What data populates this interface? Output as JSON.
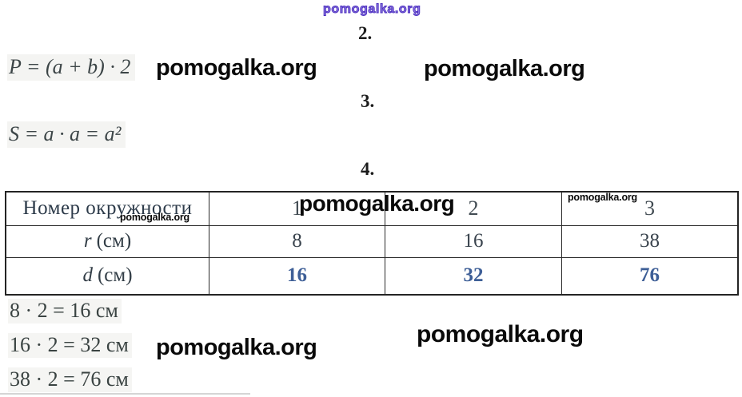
{
  "watermarks": {
    "site": "pomogalka.org"
  },
  "headings": {
    "item2": "2.",
    "item3": "3.",
    "item4": "4."
  },
  "formulas": {
    "perimeter": "P = (a + b) · 2",
    "area": "S = a · a = a²"
  },
  "table": {
    "header": {
      "label": "Номер окружности",
      "columns": [
        "1",
        "2",
        "3"
      ]
    },
    "rows": [
      {
        "var": "r",
        "unit": "(см)",
        "values": [
          "8",
          "16",
          "38"
        ]
      },
      {
        "var": "d",
        "unit": "(см)",
        "values": [
          "16",
          "32",
          "76"
        ]
      }
    ]
  },
  "equations": [
    "8 · 2 = 16 см",
    "16 · 2 = 32 см",
    "38 · 2 = 76 см"
  ],
  "colors": {
    "diameter_accent_blue": "#3e5f97",
    "watermark_purple": "#4c2fc0",
    "watermark_black": "#0a0a0a",
    "formula_text": "#3c4547"
  }
}
